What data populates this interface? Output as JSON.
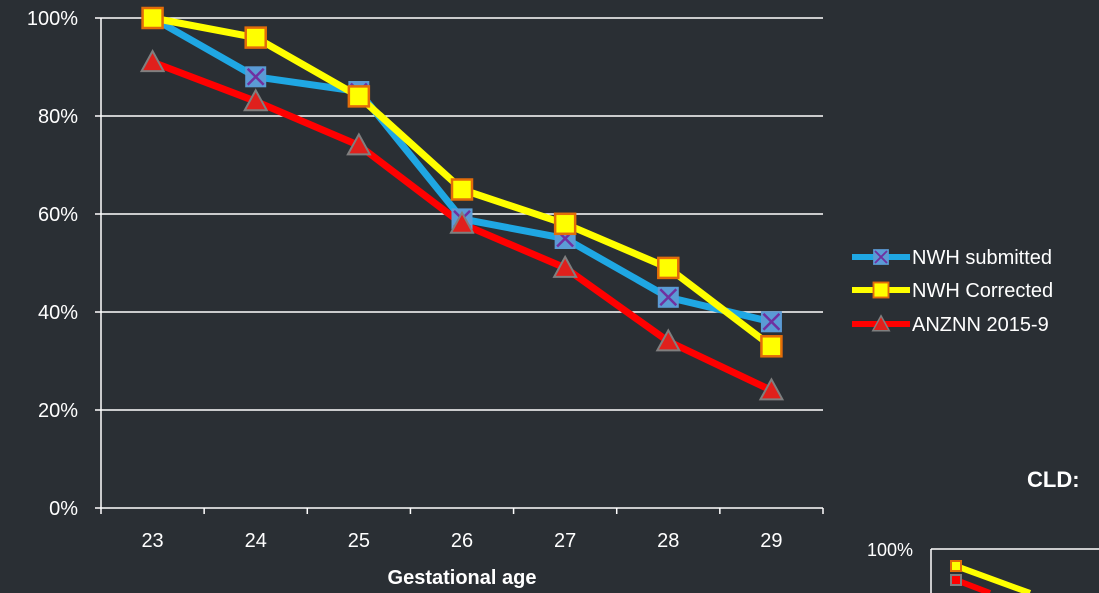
{
  "chart_data": [
    {
      "type": "line",
      "xlabel": "Gestational age",
      "categories": [
        "23",
        "24",
        "25",
        "26",
        "27",
        "28",
        "29"
      ],
      "ylim": [
        0,
        100
      ],
      "y_ticks": [
        "0%",
        "20%",
        "40%",
        "60%",
        "80%",
        "100%"
      ],
      "y_tick_values": [
        0,
        20,
        40,
        60,
        80,
        100
      ],
      "grid": true,
      "legend_position": "right",
      "series": [
        {
          "name": "NWH submitted",
          "values": [
            100,
            88,
            85,
            59,
            55,
            43,
            38
          ],
          "color": "#1fa7e3",
          "marker": "x-square",
          "marker_fill": "#5b9bd5",
          "marker_stroke": "#7030a0"
        },
        {
          "name": "NWH Corrected",
          "values": [
            100,
            96,
            84,
            65,
            58,
            49,
            33
          ],
          "color": "#ffff00",
          "marker": "square",
          "marker_fill": "#ffff00",
          "marker_stroke": "#e36c09"
        },
        {
          "name": "ANZNN 2015-9",
          "values": [
            91,
            83,
            74,
            58,
            49,
            34,
            24
          ],
          "color": "#ff0000",
          "marker": "triangle",
          "marker_fill": "#e0201c",
          "marker_stroke": "#7f7f7f"
        }
      ]
    },
    {
      "type": "line",
      "title": "CLD:",
      "y_ticks": [
        "100%"
      ],
      "partial": true,
      "series_colors": [
        "#ffff00",
        "#ff0000"
      ]
    }
  ]
}
